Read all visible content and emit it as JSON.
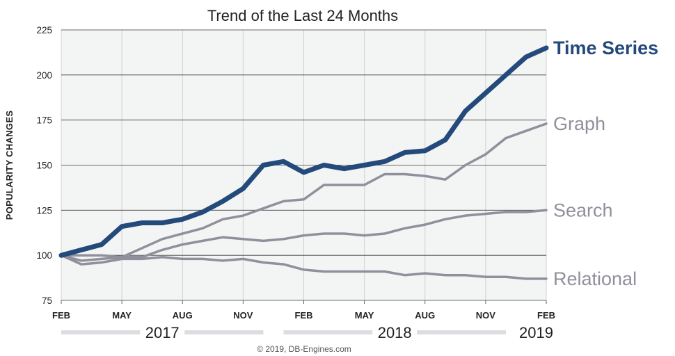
{
  "chart_data": {
    "type": "line",
    "title": "Trend of the Last 24 Months",
    "ylabel": "POPULARITY CHANGES",
    "xlabel": "",
    "ylim": [
      75,
      225
    ],
    "yticks": [
      75,
      100,
      125,
      150,
      175,
      200,
      225
    ],
    "x": [
      "Feb 2017",
      "Mar 2017",
      "Apr 2017",
      "May 2017",
      "Jun 2017",
      "Jul 2017",
      "Aug 2017",
      "Sep 2017",
      "Oct 2017",
      "Nov 2017",
      "Dec 2017",
      "Jan 2018",
      "Feb 2018",
      "Mar 2018",
      "Apr 2018",
      "May 2018",
      "Jun 2018",
      "Jul 2018",
      "Aug 2018",
      "Sep 2018",
      "Oct 2018",
      "Nov 2018",
      "Dec 2018",
      "Jan 2019",
      "Feb 2019"
    ],
    "xtick_labels": [
      "FEB",
      "MAY",
      "AUG",
      "NOV",
      "FEB",
      "MAY",
      "AUG",
      "NOV",
      "FEB"
    ],
    "years": [
      "2017",
      "2018",
      "2019"
    ],
    "grid": true,
    "legend": "right-end labels",
    "background": "#f3f4f4",
    "series": [
      {
        "name": "Time Series",
        "color": "#244a7c",
        "values": [
          100,
          103,
          106,
          116,
          118,
          118,
          120,
          124,
          130,
          137,
          150,
          152,
          146,
          150,
          148,
          150,
          152,
          157,
          158,
          164,
          180,
          190,
          200,
          210,
          215
        ]
      },
      {
        "name": "Graph",
        "color": "#8f909c",
        "values": [
          100,
          97,
          98,
          99,
          104,
          109,
          112,
          115,
          120,
          122,
          126,
          130,
          131,
          139,
          139,
          139,
          145,
          145,
          144,
          142,
          150,
          156,
          165,
          169,
          173
        ]
      },
      {
        "name": "Search",
        "color": "#8f909c",
        "values": [
          100,
          100,
          100,
          99,
          99,
          103,
          106,
          108,
          110,
          109,
          108,
          109,
          111,
          112,
          112,
          111,
          112,
          115,
          117,
          120,
          122,
          123,
          124,
          124,
          125
        ]
      },
      {
        "name": "Relational",
        "color": "#8f909c",
        "values": [
          100,
          95,
          96,
          98,
          98,
          99,
          98,
          98,
          97,
          98,
          96,
          95,
          92,
          91,
          91,
          91,
          91,
          89,
          90,
          89,
          89,
          88,
          88,
          87,
          87
        ]
      }
    ]
  },
  "credit": "© 2019, DB-Engines.com"
}
